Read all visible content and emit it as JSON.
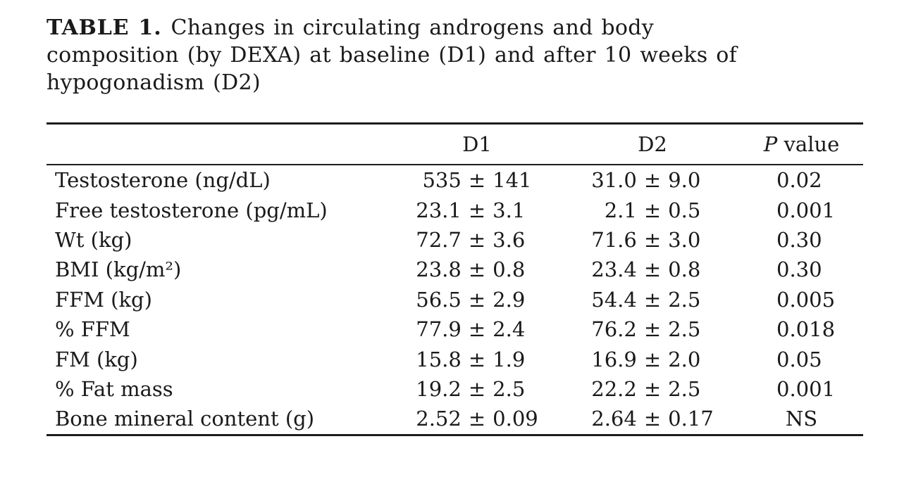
{
  "caption": {
    "label": "TABLE 1.",
    "line1": "Changes in circulating androgens and body",
    "line2": "composition (by DEXA) at baseline (D1) and after 10 weeks of",
    "line3": "hypogonadism (D2)"
  },
  "table": {
    "pm": "±",
    "columns": {
      "d1": "D1",
      "d2": "D2",
      "p_italic": "P",
      "p_rest": " value"
    },
    "rows": [
      {
        "label": "Testosterone (ng/dL)",
        "d1": {
          "mean": "535",
          "sd": "141"
        },
        "d2": {
          "mean": "31.0",
          "sd": "9.0"
        },
        "p": "0.02"
      },
      {
        "label": "Free testosterone (pg/mL)",
        "d1": {
          "mean": "23.1",
          "sd": "3.1"
        },
        "d2": {
          "mean": "2.1",
          "sd": "0.5"
        },
        "p": "0.001"
      },
      {
        "label": "Wt (kg)",
        "d1": {
          "mean": "72.7",
          "sd": "3.6"
        },
        "d2": {
          "mean": "71.6",
          "sd": "3.0"
        },
        "p": "0.30"
      },
      {
        "label": "BMI (kg/m²)",
        "d1": {
          "mean": "23.8",
          "sd": "0.8"
        },
        "d2": {
          "mean": "23.4",
          "sd": "0.8"
        },
        "p": "0.30"
      },
      {
        "label": "FFM (kg)",
        "d1": {
          "mean": "56.5",
          "sd": "2.9"
        },
        "d2": {
          "mean": "54.4",
          "sd": "2.5"
        },
        "p": "0.005"
      },
      {
        "label": "% FFM",
        "d1": {
          "mean": "77.9",
          "sd": "2.4"
        },
        "d2": {
          "mean": "76.2",
          "sd": "2.5"
        },
        "p": "0.018"
      },
      {
        "label": "FM (kg)",
        "d1": {
          "mean": "15.8",
          "sd": "1.9"
        },
        "d2": {
          "mean": "16.9",
          "sd": "2.0"
        },
        "p": "0.05"
      },
      {
        "label": "% Fat mass",
        "d1": {
          "mean": "19.2",
          "sd": "2.5"
        },
        "d2": {
          "mean": "22.2",
          "sd": "2.5"
        },
        "p": "0.001"
      },
      {
        "label": "Bone mineral content (g)",
        "d1": {
          "mean": "2.52",
          "sd": "0.09"
        },
        "d2": {
          "mean": "2.64",
          "sd": "0.17"
        },
        "p": "NS",
        "p_centered": "true"
      }
    ]
  }
}
